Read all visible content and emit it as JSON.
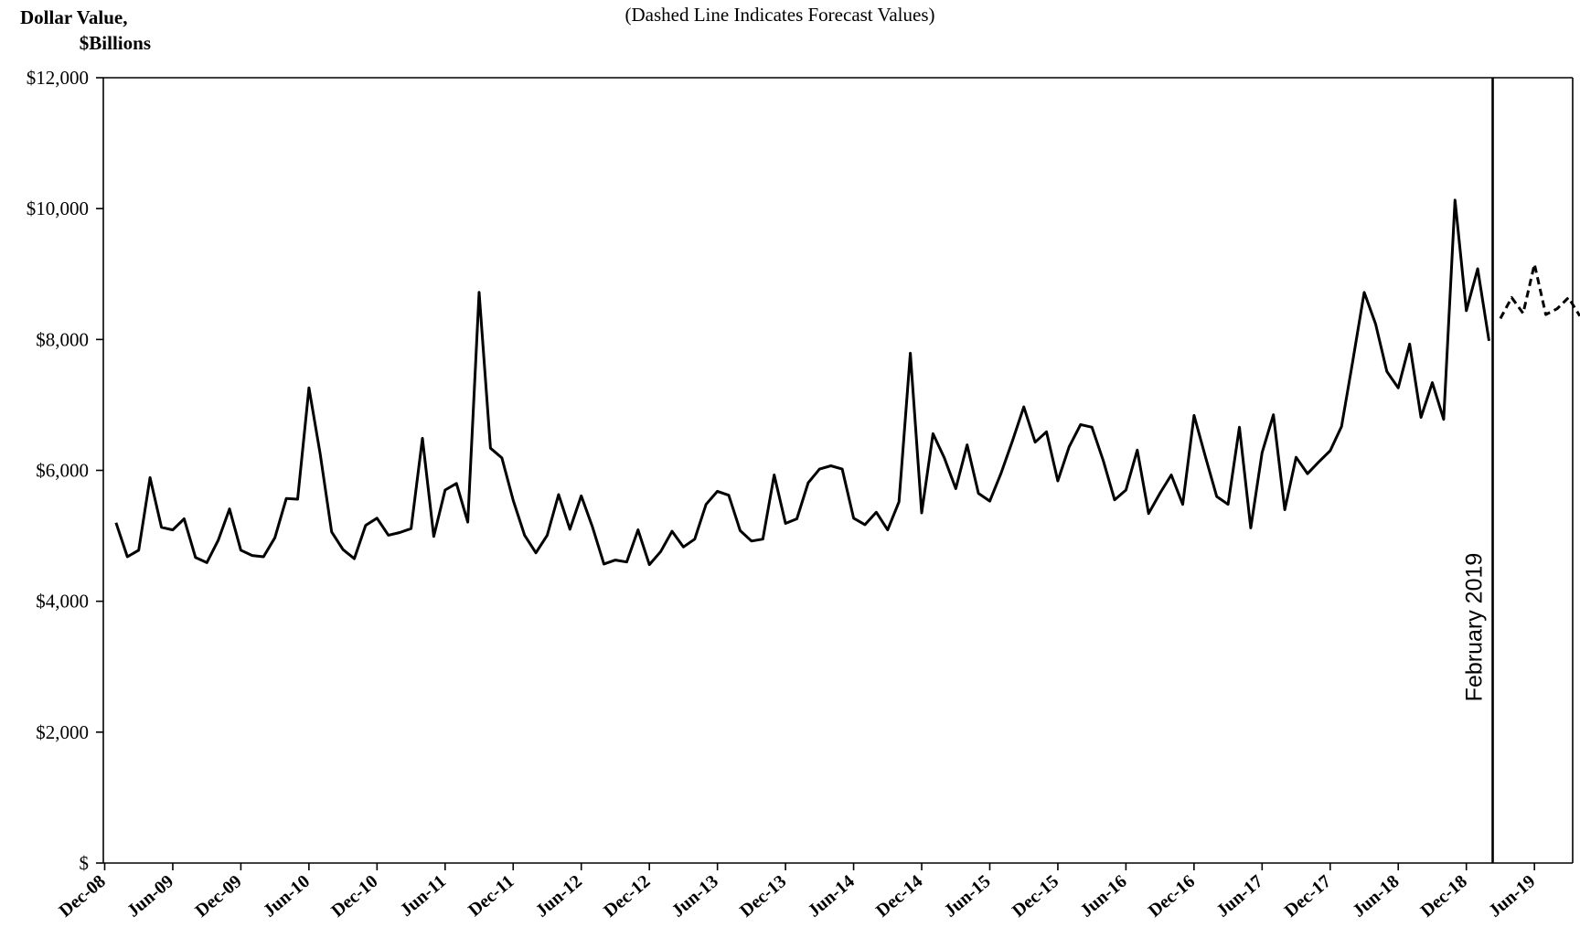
{
  "chart_data": {
    "type": "line",
    "subtitle": "(Dashed Line Indicates Forecast Values)",
    "ylabel_line1": "Dollar Value,",
    "ylabel_line2": "$Billions",
    "xlabel": "",
    "ylim": [
      0,
      12000
    ],
    "y_ticks": [
      {
        "value": 0,
        "label": "$"
      },
      {
        "value": 2000,
        "label": "$2,000"
      },
      {
        "value": 4000,
        "label": "$4,000"
      },
      {
        "value": 6000,
        "label": "$6,000"
      },
      {
        "value": 8000,
        "label": "$8,000"
      },
      {
        "value": 10000,
        "label": "$10,000"
      },
      {
        "value": 12000,
        "label": "$12,000"
      }
    ],
    "x_start": "Dec-08",
    "x_end": "Dec-19",
    "x_tick_labels": [
      "Dec-08",
      "Jun-09",
      "Dec-09",
      "Jun-10",
      "Dec-10",
      "Jun-11",
      "Dec-11",
      "Jun-12",
      "Dec-12",
      "Jun-13",
      "Dec-13",
      "Jun-14",
      "Dec-14",
      "Jun-15",
      "Dec-15",
      "Jun-16",
      "Dec-16",
      "Jun-17",
      "Dec-17",
      "Jun-18",
      "Dec-18",
      "Jun-19"
    ],
    "grid": false,
    "legend": "none",
    "vertical_marker": {
      "x": "Feb-19",
      "label": "February 2019"
    },
    "series": [
      {
        "style": "solid",
        "color": "#000000",
        "start": "Jan-09",
        "values": [
          5200,
          4680,
          4780,
          5890,
          5130,
          5090,
          5260,
          4670,
          4590,
          4930,
          5410,
          4780,
          4700,
          4680,
          4970,
          5570,
          5560,
          7260,
          6240,
          5060,
          4790,
          4650,
          5160,
          5270,
          5010,
          5050,
          5110,
          6490,
          4990,
          5700,
          5800,
          5210,
          8720,
          6340,
          6190,
          5540,
          5010,
          4740,
          5010,
          5630,
          5100,
          5610,
          5130,
          4570,
          4630,
          4600,
          5090,
          4560,
          4760,
          5070,
          4830,
          4950,
          5480,
          5680,
          5620,
          5080,
          4920,
          4950,
          5930,
          5190,
          5260,
          5810,
          6020,
          6070,
          6020,
          5270,
          5170,
          5360,
          5090,
          5520,
          7790,
          5350,
          6560,
          6190,
          5720,
          6390,
          5650,
          5530,
          5960,
          6450,
          6970,
          6430,
          6590,
          5840,
          6360,
          6700,
          6660,
          6150,
          5550,
          5700,
          6310,
          5340,
          5650,
          5930,
          5480,
          6840,
          6210,
          5600,
          5480,
          6660,
          5120,
          6270,
          6850,
          5400,
          6200,
          5950,
          6130,
          6300,
          6670,
          7680,
          8720,
          8240,
          7510,
          7260,
          7930,
          6810,
          7340,
          6780,
          10130,
          8440,
          9080,
          7980
        ]
      },
      {
        "style": "dashed",
        "color": "#000000",
        "start": "Mar-19",
        "values": [
          8320,
          8640,
          8400,
          9150,
          8380,
          8470,
          8640,
          8360
        ]
      }
    ]
  }
}
